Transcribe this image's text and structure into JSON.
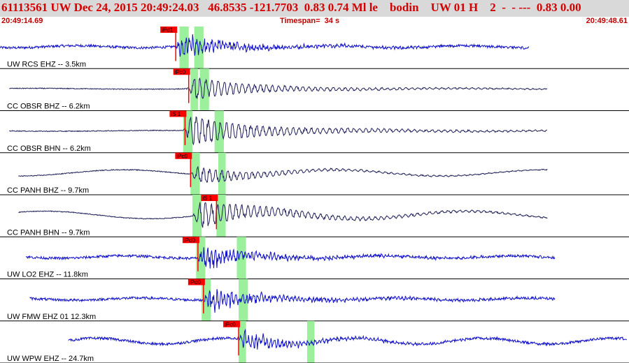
{
  "header": {
    "title": "61113561 UW Dec 24, 2015 20:49:24.03   46.8535 -121.7703  0.83 0.74 Ml le    bodin    UW 01 H    2  -  - ---  0.83 0.00"
  },
  "time": {
    "start": "20:49:14.69",
    "timespan": "Timespan=  34 s",
    "end": "20:49:48.61"
  },
  "colors": {
    "header_bg": "#d9d9d9",
    "header_text": "#d40000",
    "trace_blue": "#1010c8",
    "trace_dark": "#20205a",
    "pick_marker": "#ff0000",
    "window_green": "#9cf09c",
    "separator": "#000000"
  },
  "traces": [
    {
      "label": "UW RCS EHZ -- 3.5km",
      "start_s": 0.0,
      "end_s": 28.6,
      "onset_s": 9.4,
      "picks": [
        "iPd1"
      ],
      "pick_times_s": [
        9.5
      ],
      "windows_s": [
        [
          9.7,
          10.2
        ],
        [
          10.5,
          11.0
        ]
      ],
      "style": "blue-hf",
      "amplitude": 0.55,
      "noise": 0.05,
      "coda": 0.22
    },
    {
      "label": "CC OBSR BHZ -- 6.2km",
      "start_s": 0.5,
      "end_s": 29.6,
      "onset_s": 10.1,
      "picks": [
        "iPc0"
      ],
      "pick_times_s": [
        10.2
      ],
      "windows_s": [
        [
          10.3,
          10.7
        ],
        [
          10.8,
          11.3
        ]
      ],
      "style": "dark-lf",
      "amplitude": 0.45,
      "noise": 0.02,
      "coda": 0.35
    },
    {
      "label": "CC OBSR BHN -- 6.2km",
      "start_s": 0.5,
      "end_s": 29.6,
      "onset_s": 9.9,
      "picks": [
        "iS 1"
      ],
      "pick_times_s": [
        10.0
      ],
      "windows_s": [
        [
          9.9,
          10.4
        ],
        [
          11.6,
          12.1
        ]
      ],
      "style": "dark-lf",
      "amplitude": 0.55,
      "noise": 0.02,
      "coda": 0.45
    },
    {
      "label": "CC PANH BHZ -- 9.7km",
      "start_s": 1.0,
      "end_s": 29.6,
      "onset_s": 10.3,
      "picks": [
        "iPc0"
      ],
      "pick_times_s": [
        10.3
      ],
      "windows_s": [
        [
          10.3,
          10.8
        ],
        [
          11.8,
          12.2
        ]
      ],
      "style": "dark-lf",
      "amplitude": 0.35,
      "noise": 0.15,
      "coda": 0.3
    },
    {
      "label": "CC PANH BHN -- 9.7km",
      "start_s": 1.0,
      "end_s": 29.6,
      "onset_s": 10.4,
      "picks": [
        "iS 1"
      ],
      "pick_times_s": [
        11.7
      ],
      "windows_s": [
        [
          10.4,
          10.9
        ],
        [
          11.7,
          12.2
        ]
      ],
      "style": "dark-lf",
      "amplitude": 0.5,
      "noise": 0.18,
      "coda": 0.45
    },
    {
      "label": "UW LO2 EHZ -- 11.8km",
      "start_s": 1.4,
      "end_s": 30.0,
      "onset_s": 10.6,
      "picks": [
        "iPd0"
      ],
      "pick_times_s": [
        10.7
      ],
      "windows_s": [
        [
          10.6,
          11.1
        ],
        [
          12.8,
          13.3
        ]
      ],
      "style": "blue-hf",
      "amplitude": 0.5,
      "noise": 0.06,
      "coda": 0.25
    },
    {
      "label": "UW FMW EHZ 01 12.3km",
      "start_s": 1.6,
      "end_s": 30.0,
      "onset_s": 10.9,
      "picks": [
        "iPd0"
      ],
      "pick_times_s": [
        11.0
      ],
      "windows_s": [
        [
          10.9,
          11.4
        ],
        [
          12.9,
          13.4
        ]
      ],
      "style": "blue-hf",
      "amplitude": 0.55,
      "noise": 0.05,
      "coda": 0.25
    },
    {
      "label": "UW WPW EHZ -- 24.7km",
      "start_s": 3.7,
      "end_s": 33.9,
      "onset_s": 12.8,
      "picks": [
        "iPc0"
      ],
      "pick_times_s": [
        12.9
      ],
      "windows_s": [
        [
          12.9,
          13.3
        ],
        [
          16.6,
          17.0
        ]
      ],
      "style": "blue-hf",
      "amplitude": 0.45,
      "noise": 0.14,
      "coda": 0.2
    }
  ]
}
